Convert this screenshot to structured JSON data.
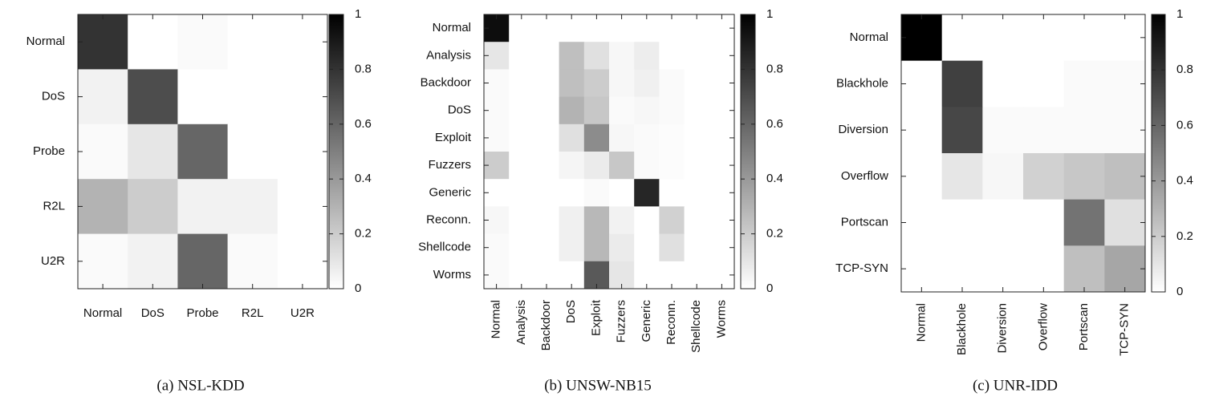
{
  "chart_data": [
    {
      "type": "heatmap",
      "title": "(a) NSL-KDD",
      "rows": [
        "Normal",
        "DoS",
        "Probe",
        "R2L",
        "U2R"
      ],
      "columns": [
        "Normal",
        "DoS",
        "Probe",
        "R2L",
        "U2R"
      ],
      "values": [
        [
          0.8,
          0,
          0.02,
          0,
          0
        ],
        [
          0.05,
          0.7,
          0,
          0,
          0
        ],
        [
          0.02,
          0.1,
          0.6,
          0,
          0
        ],
        [
          0.3,
          0.2,
          0.05,
          0.05,
          0
        ],
        [
          0.02,
          0.05,
          0.6,
          0.02,
          0
        ]
      ],
      "zlim": [
        0,
        1
      ],
      "zticks": [
        0,
        0.2,
        0.4,
        0.6,
        0.8,
        1
      ],
      "colormap": "gray"
    },
    {
      "type": "heatmap",
      "title": "(b) UNSW-NB15",
      "rows": [
        "Normal",
        "Analysis",
        "Backdoor",
        "DoS",
        "Exploit",
        "Fuzzers",
        "Generic",
        "Reconn.",
        "Shellcode",
        "Worms"
      ],
      "columns": [
        "Normal",
        "Analysis",
        "Backdoor",
        "DoS",
        "Exploit",
        "Fuzzers",
        "Generic",
        "Reconn.",
        "Shellcode",
        "Worms"
      ],
      "values": [
        [
          0.95,
          0,
          0,
          0,
          0,
          0,
          0,
          0,
          0,
          0
        ],
        [
          0.1,
          0,
          0,
          0.25,
          0.12,
          0.03,
          0.07,
          0,
          0,
          0
        ],
        [
          0.02,
          0,
          0,
          0.25,
          0.2,
          0.03,
          0.06,
          0.02,
          0,
          0
        ],
        [
          0.02,
          0,
          0,
          0.3,
          0.22,
          0.02,
          0.03,
          0.02,
          0,
          0
        ],
        [
          0.02,
          0,
          0,
          0.12,
          0.45,
          0.03,
          0.02,
          0.01,
          0,
          0
        ],
        [
          0.2,
          0,
          0,
          0.04,
          0.08,
          0.22,
          0.02,
          0.01,
          0,
          0
        ],
        [
          0,
          0,
          0,
          0,
          0.02,
          0,
          0.85,
          0,
          0,
          0
        ],
        [
          0.03,
          0,
          0,
          0.06,
          0.28,
          0.05,
          0,
          0.18,
          0,
          0
        ],
        [
          0.02,
          0,
          0,
          0.06,
          0.28,
          0.08,
          0,
          0.12,
          0,
          0
        ],
        [
          0.02,
          0,
          0,
          0,
          0.65,
          0.1,
          0,
          0,
          0,
          0
        ]
      ],
      "zlim": [
        0,
        1
      ],
      "zticks": [
        0,
        0.2,
        0.4,
        0.6,
        0.8,
        1
      ],
      "colormap": "gray"
    },
    {
      "type": "heatmap",
      "title": "(c) UNR-IDD",
      "rows": [
        "Normal",
        "Blackhole",
        "Diversion",
        "Overflow",
        "Portscan",
        "TCP-SYN"
      ],
      "columns": [
        "Normal",
        "Blackhole",
        "Diversion",
        "Overflow",
        "Portscan",
        "TCP-SYN"
      ],
      "values": [
        [
          1,
          0,
          0,
          0,
          0,
          0
        ],
        [
          0,
          0.75,
          0,
          0,
          0.02,
          0.02
        ],
        [
          0,
          0.72,
          0.02,
          0.02,
          0.02,
          0.02
        ],
        [
          0,
          0.1,
          0.03,
          0.18,
          0.22,
          0.25
        ],
        [
          0,
          0,
          0,
          0,
          0.55,
          0.12
        ],
        [
          0,
          0,
          0,
          0,
          0.25,
          0.35
        ]
      ],
      "zlim": [
        0,
        1
      ],
      "zticks": [
        0,
        0.2,
        0.4,
        0.6,
        0.8,
        1
      ],
      "colormap": "gray"
    }
  ]
}
